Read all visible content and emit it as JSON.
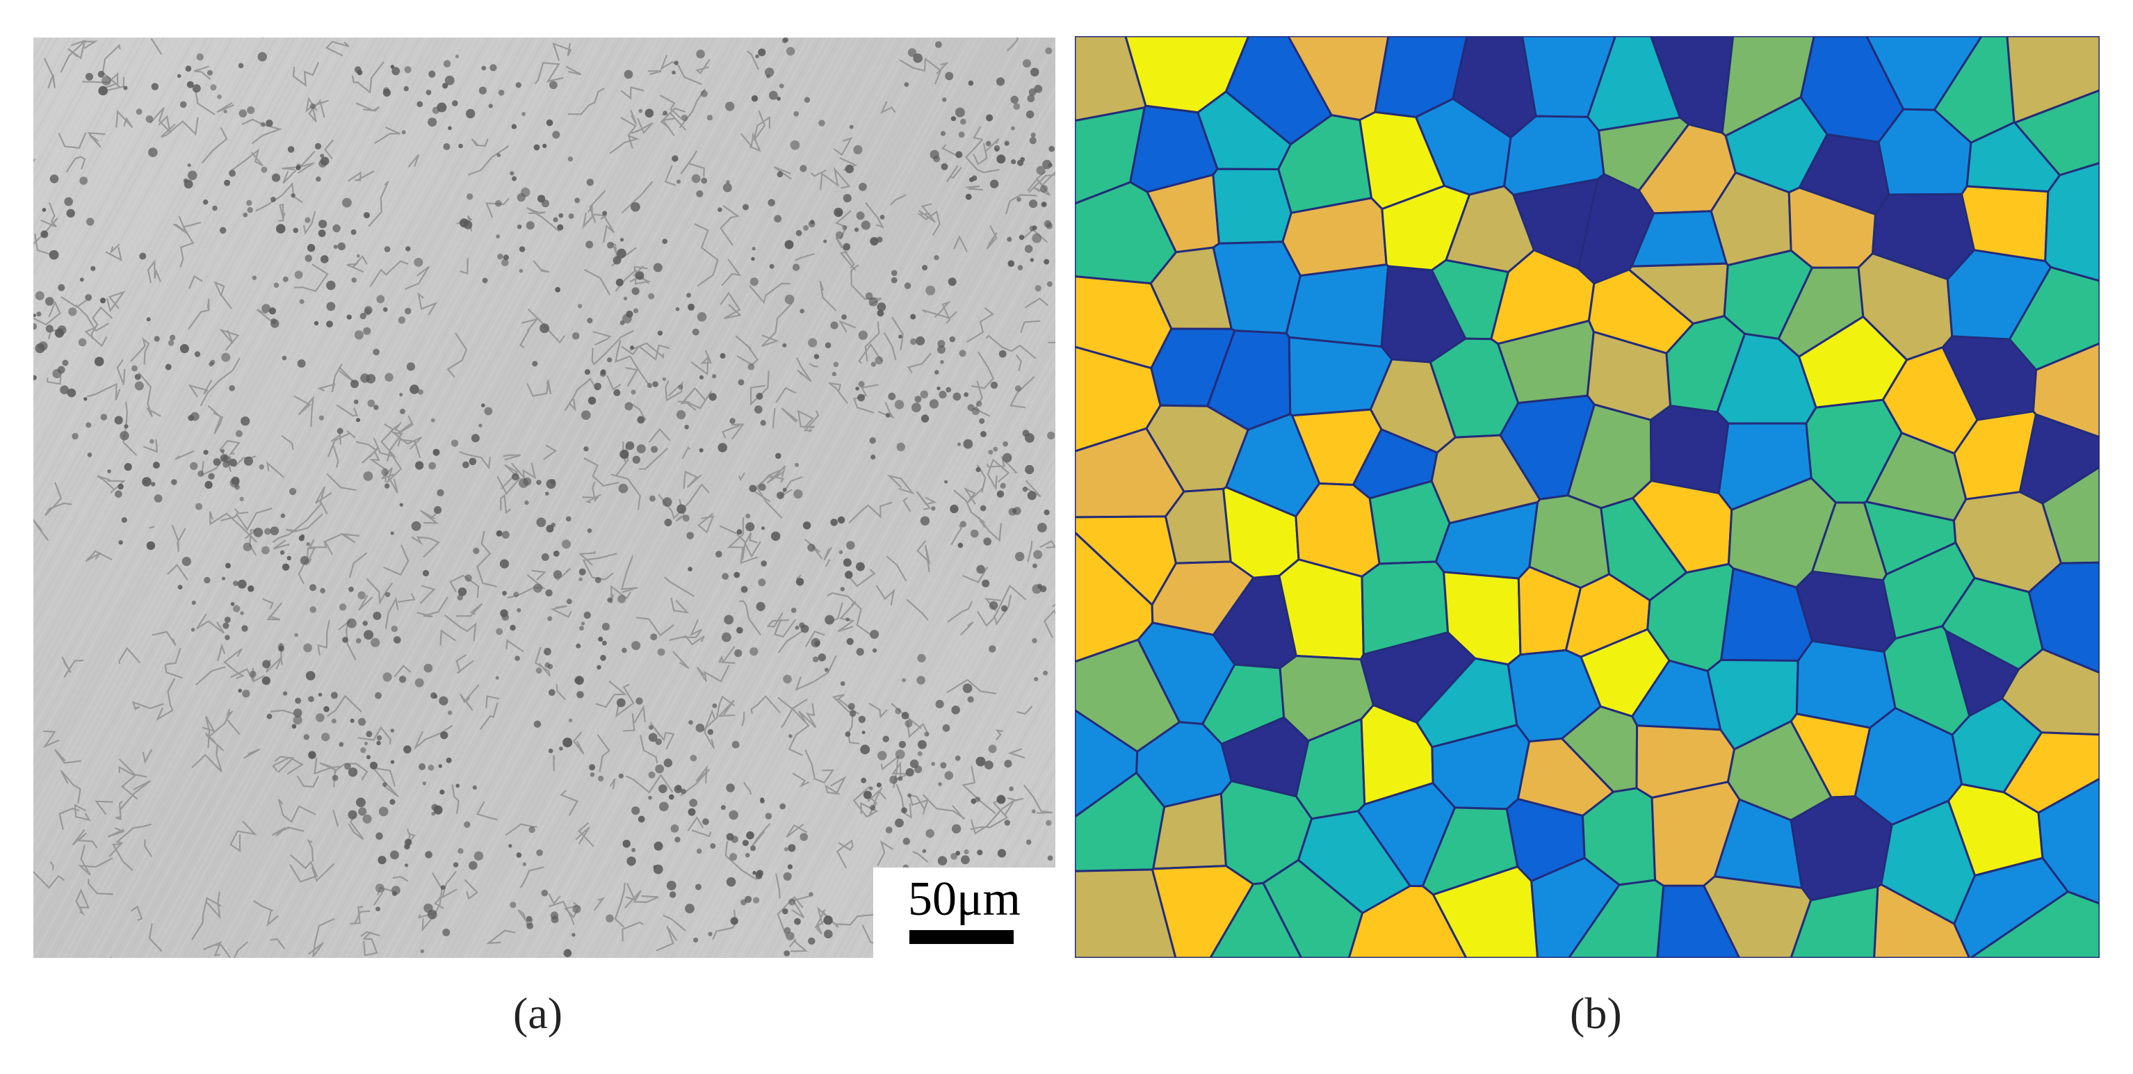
{
  "figure": {
    "panel_a": {
      "caption": "(a)",
      "scale_bar_label": "50μm"
    },
    "panel_b": {
      "caption": "(b)",
      "palette": [
        "#2a2f8e",
        "#0e63d6",
        "#138ce0",
        "#16b3c2",
        "#2cc08f",
        "#7bb86a",
        "#c8b45a",
        "#e8b54a",
        "#ffc61e",
        "#f2f20f"
      ]
    }
  }
}
